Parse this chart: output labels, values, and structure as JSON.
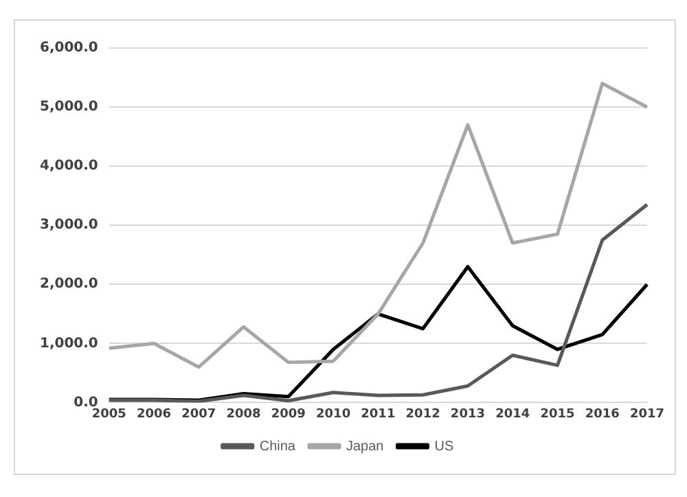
{
  "chart_data": {
    "type": "line",
    "categories": [
      "2005",
      "2006",
      "2007",
      "2008",
      "2009",
      "2010",
      "2011",
      "2012",
      "2013",
      "2014",
      "2015",
      "2016",
      "2017"
    ],
    "series": [
      {
        "name": "China",
        "color": "#595959",
        "values": [
          40,
          40,
          20,
          120,
          30,
          170,
          120,
          130,
          280,
          800,
          630,
          2750,
          3350
        ]
      },
      {
        "name": "Japan",
        "color": "#a6a6a6",
        "values": [
          920,
          1000,
          600,
          1280,
          680,
          700,
          1500,
          2700,
          4700,
          2700,
          2850,
          5400,
          5000
        ]
      },
      {
        "name": "US",
        "color": "#000000",
        "values": [
          50,
          50,
          40,
          150,
          100,
          900,
          1500,
          1250,
          2300,
          1300,
          900,
          1150,
          2000
        ]
      }
    ],
    "ylim": [
      0,
      6000
    ],
    "yticks": [
      {
        "value": 0,
        "label": "0.0"
      },
      {
        "value": 1000,
        "label": "1,000.0"
      },
      {
        "value": 2000,
        "label": "2,000.0"
      },
      {
        "value": 3000,
        "label": "3,000.0"
      },
      {
        "value": 4000,
        "label": "4,000.0"
      },
      {
        "value": 5000,
        "label": "5,000.0"
      },
      {
        "value": 6000,
        "label": "6,000.0"
      }
    ],
    "grid": "y",
    "legend": "bottom",
    "marker": "none",
    "line_style": "solid"
  }
}
